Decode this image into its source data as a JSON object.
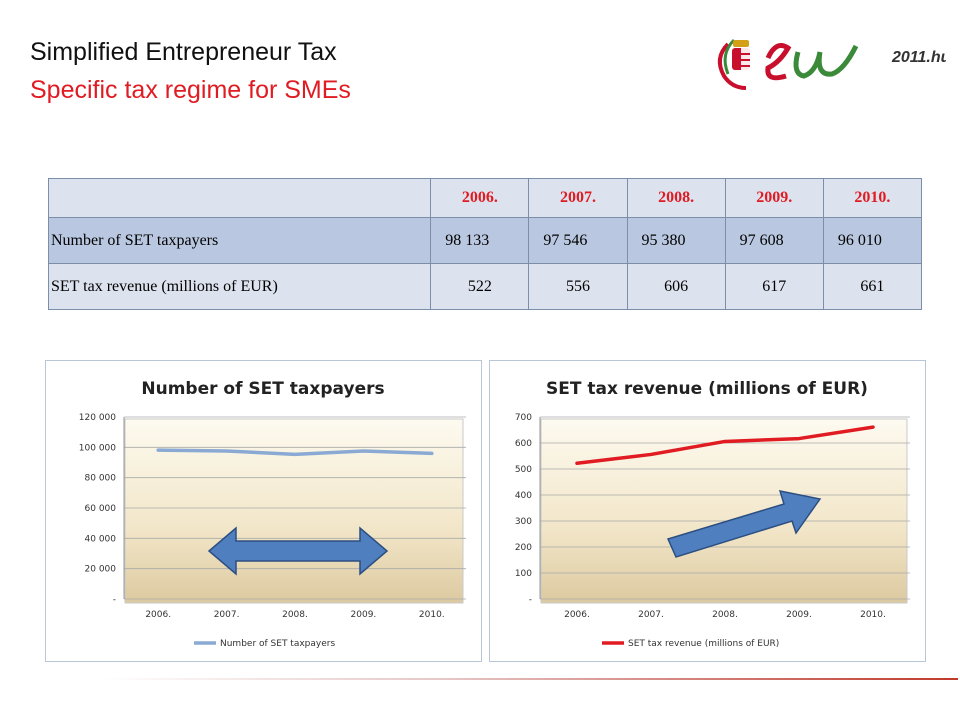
{
  "slide": {
    "title": "Simplified Entrepreneur Tax",
    "subtitle": "Specific tax regime for SMEs",
    "logo_text": "2011.hu"
  },
  "table": {
    "years": [
      "2006.",
      "2007.",
      "2008.",
      "2009.",
      "2010."
    ],
    "rows": [
      {
        "label": "Number of SET taxpayers",
        "values": [
          "98 133",
          "97 546",
          "95 380",
          "97 608",
          "96 010"
        ]
      },
      {
        "label": "SET tax revenue (millions of EUR)",
        "values": [
          "522",
          "556",
          "606",
          "617",
          "661"
        ]
      }
    ]
  },
  "chart_data": [
    {
      "type": "line",
      "title": "Number of SET taxpayers",
      "categories": [
        "2006.",
        "2007.",
        "2008.",
        "2009.",
        "2010."
      ],
      "series": [
        {
          "name": "Number of SET taxpayers",
          "values": [
            98133,
            97546,
            95380,
            97608,
            96010
          ],
          "color": "#8aaad4"
        }
      ],
      "ylim": [
        0,
        120000
      ],
      "yticks": [
        0,
        20000,
        40000,
        60000,
        80000,
        100000,
        120000
      ],
      "ytick_labels": [
        "-",
        "20 000",
        "40 000",
        "60 000",
        "80 000",
        "100 000",
        "120 000"
      ],
      "legend": "bottom",
      "grid": true,
      "annotation": "double-headed horizontal arrow",
      "arrow_color": "#4f7fbf"
    },
    {
      "type": "line",
      "title": "SET tax revenue (millions of EUR)",
      "categories": [
        "2006.",
        "2007.",
        "2008.",
        "2009.",
        "2010."
      ],
      "series": [
        {
          "name": "SET tax revenue (millions of EUR)",
          "values": [
            522,
            556,
            606,
            617,
            661
          ],
          "color": "#e01b22"
        }
      ],
      "ylim": [
        0,
        700
      ],
      "yticks": [
        0,
        100,
        200,
        300,
        400,
        500,
        600,
        700
      ],
      "ytick_labels": [
        "-",
        "100",
        "200",
        "300",
        "400",
        "500",
        "600",
        "700"
      ],
      "legend": "bottom",
      "grid": true,
      "annotation": "upward diagonal arrow",
      "arrow_color": "#4f7fbf"
    }
  ]
}
